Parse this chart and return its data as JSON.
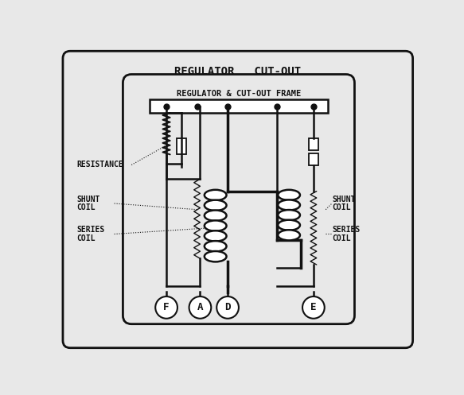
{
  "title": "REGULATOR   CUT-OUT",
  "frame_label": "REGULATOR & CUT-OUT FRAME",
  "background_color": "#e8e8e8",
  "inner_bg": "#ffffff",
  "line_color": "#111111",
  "terminals": [
    "F",
    "A",
    "D",
    "E"
  ],
  "fig_w": 5.83,
  "fig_h": 4.97
}
